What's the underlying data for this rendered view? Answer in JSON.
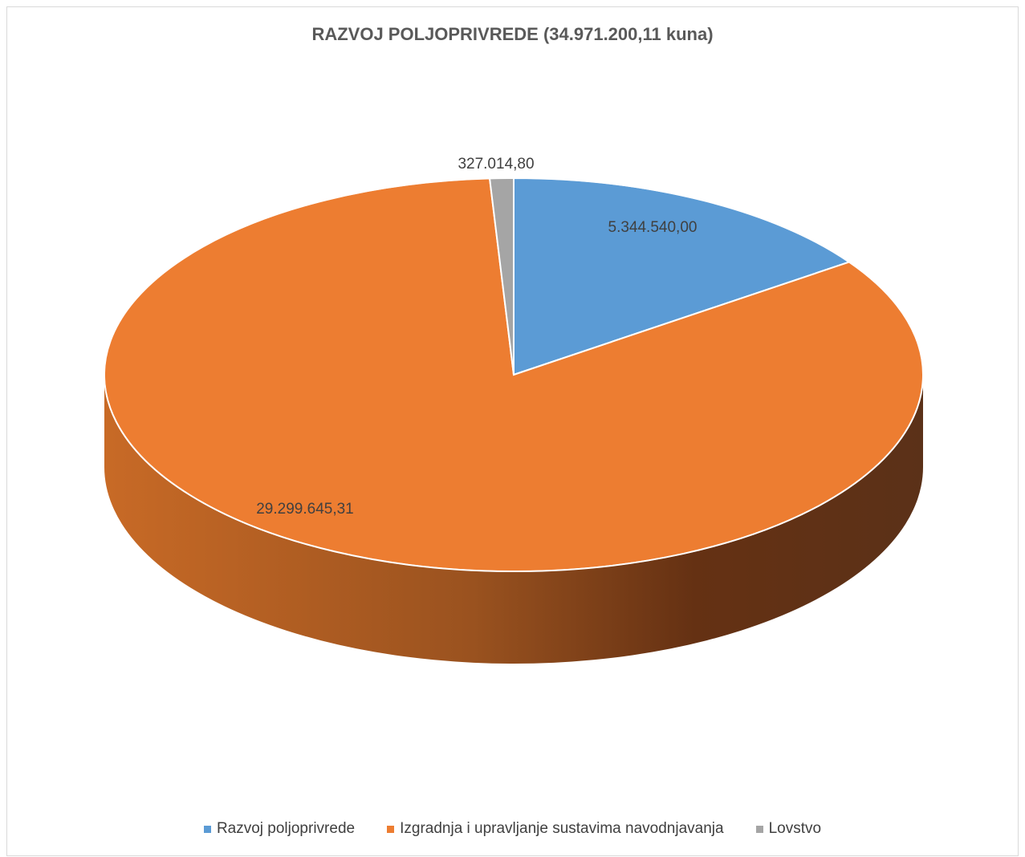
{
  "chart_data": {
    "type": "pie",
    "title": "RAZVOJ POLJOPRIVREDE (34.971.200,11 kuna)",
    "slices": [
      {
        "label": "Razvoj poljoprivrede",
        "value": 5344540.0,
        "display": "5.344.540,00",
        "color": "#5b9bd5"
      },
      {
        "label": "Izgradnja i upravljanje sustavima navodnjavanja",
        "value": 29299645.31,
        "display": "29.299.645,31",
        "color": "#ed7d31"
      },
      {
        "label": "Lovstvo",
        "value": 327014.8,
        "display": "327.014,80",
        "color": "#a5a5a5"
      }
    ],
    "legend_position": "bottom",
    "style": "3d"
  }
}
